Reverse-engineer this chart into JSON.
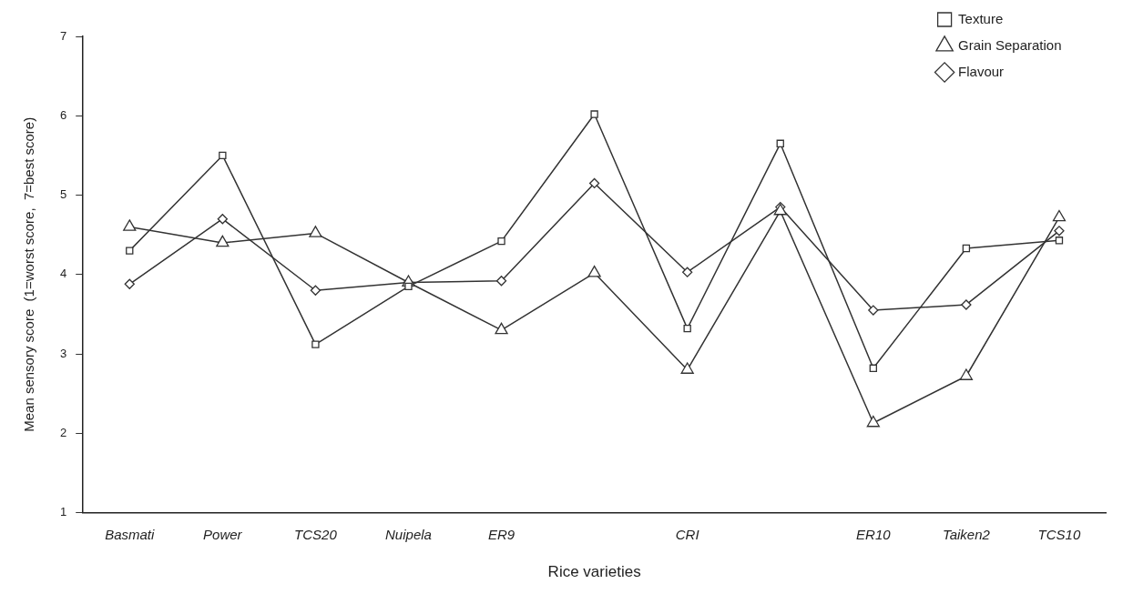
{
  "chart_data": {
    "type": "line",
    "xlabel": "Rice varieties",
    "ylabel": "Mean sensory score  (1=worst score,  7=best score)",
    "categories": [
      "Basmati",
      "Power",
      "TCS20",
      "Nuipela",
      "ER9",
      null,
      "CRI",
      null,
      "ER10",
      "Taiken2",
      "TCS10"
    ],
    "ylim": [
      1,
      7
    ],
    "yticks": [
      1,
      2,
      3,
      4,
      5,
      6,
      7
    ],
    "grid": false,
    "legend": "top right",
    "line_style": "solid",
    "series": [
      {
        "name": "Texture",
        "color": "#333333",
        "marker": "square",
        "values": [
          4.3,
          5.5,
          3.12,
          3.85,
          4.42,
          6.02,
          3.32,
          5.65,
          2.82,
          4.33,
          4.43
        ]
      },
      {
        "name": "Grain Separation",
        "color": "#333333",
        "marker": "triangle",
        "values": [
          4.6,
          4.4,
          4.52,
          3.9,
          3.3,
          4.02,
          2.8,
          4.8,
          2.13,
          2.72,
          4.72
        ]
      },
      {
        "name": "Flavour",
        "color": "#333333",
        "marker": "diamond",
        "values": [
          3.88,
          4.7,
          3.8,
          3.9,
          3.92,
          5.15,
          4.03,
          4.85,
          3.55,
          3.62,
          4.55
        ]
      }
    ]
  }
}
